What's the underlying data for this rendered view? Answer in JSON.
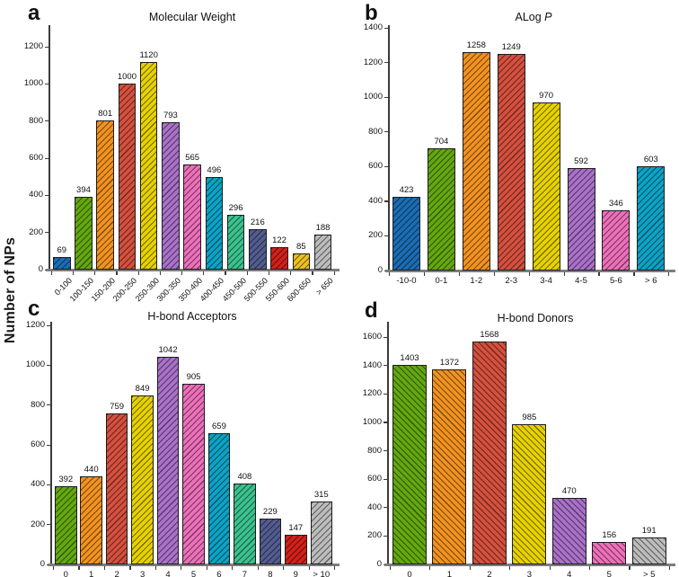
{
  "figure": {
    "ylabel": "Number of NPs"
  },
  "palette": {
    "blue": "#1a6db3",
    "green": "#63a80f",
    "orange": "#f29220",
    "red": "#d5503e",
    "yellow": "#e7d200",
    "purple": "#a971c9",
    "pink": "#ed6fba",
    "cyan": "#0ba3c6",
    "seagreen": "#3ac28e",
    "slate": "#535c90",
    "dark_red": "#d1201a",
    "gold": "#edc01d",
    "gray": "#bcbcbc"
  },
  "chart_data": [
    {
      "panel": "a",
      "type": "bar",
      "title": "Molecular Weight",
      "title_italic": "",
      "categories": [
        "0-100",
        "100-150",
        "150-200",
        "200-250",
        "250-300",
        "300-350",
        "350-400",
        "400-450",
        "450-500",
        "500-550",
        "550-600",
        "600-650",
        "> 650"
      ],
      "values": [
        69,
        394,
        801,
        1000,
        1120,
        793,
        565,
        496,
        296,
        216,
        122,
        85,
        188
      ],
      "bar_colors": [
        "#1a6db3",
        "#63a80f",
        "#f29220",
        "#d5503e",
        "#e7d200",
        "#a971c9",
        "#ed6fba",
        "#0ba3c6",
        "#3ac28e",
        "#535c90",
        "#d1201a",
        "#edc01d",
        "#bcbcbc"
      ],
      "ylim": [
        0,
        1200
      ],
      "ytick_step": 200,
      "hatch": "/",
      "xlabel_rotated": true,
      "grid": false,
      "legend": false
    },
    {
      "panel": "b",
      "type": "bar",
      "title": "ALog",
      "title_italic": "P",
      "categories": [
        "-10-0",
        "0-1",
        "1-2",
        "2-3",
        "3-4",
        "4-5",
        "5-6",
        "> 6"
      ],
      "values": [
        423,
        704,
        1258,
        1249,
        970,
        592,
        346,
        603
      ],
      "bar_colors": [
        "#1a6db3",
        "#63a80f",
        "#f29220",
        "#d5503e",
        "#e7d200",
        "#a971c9",
        "#ed6fba",
        "#0ba3c6"
      ],
      "ylim": [
        0,
        1400
      ],
      "ytick_step": 200,
      "hatch": "/",
      "xlabel_rotated": false,
      "grid": false,
      "legend": false
    },
    {
      "panel": "c",
      "type": "bar",
      "title": "H-bond Acceptors",
      "title_italic": "",
      "categories": [
        "0",
        "1",
        "2",
        "3",
        "4",
        "5",
        "6",
        "7",
        "8",
        "9",
        "> 10"
      ],
      "values": [
        392,
        440,
        759,
        849,
        1042,
        905,
        659,
        408,
        229,
        147,
        315
      ],
      "bar_colors": [
        "#63a80f",
        "#f29220",
        "#d5503e",
        "#e7d200",
        "#a971c9",
        "#ed6fba",
        "#0ba3c6",
        "#3ac28e",
        "#535c90",
        "#d1201a",
        "#bcbcbc"
      ],
      "ylim": [
        0,
        1200
      ],
      "ytick_step": 200,
      "hatch": "/",
      "xlabel_rotated": false,
      "grid": false,
      "legend": false
    },
    {
      "panel": "d",
      "type": "bar",
      "title": "H-bond Donors",
      "title_italic": "",
      "categories": [
        "0",
        "1",
        "2",
        "3",
        "4",
        "5",
        "> 5"
      ],
      "values": [
        1403,
        1372,
        1568,
        985,
        470,
        156,
        191
      ],
      "bar_colors": [
        "#63a80f",
        "#f29220",
        "#d5503e",
        "#e7d200",
        "#a971c9",
        "#ed6fba",
        "#bcbcbc"
      ],
      "ylim": [
        0,
        1600
      ],
      "ytick_step": 200,
      "hatch": "\\",
      "xlabel_rotated": false,
      "grid": false,
      "legend": false
    }
  ]
}
